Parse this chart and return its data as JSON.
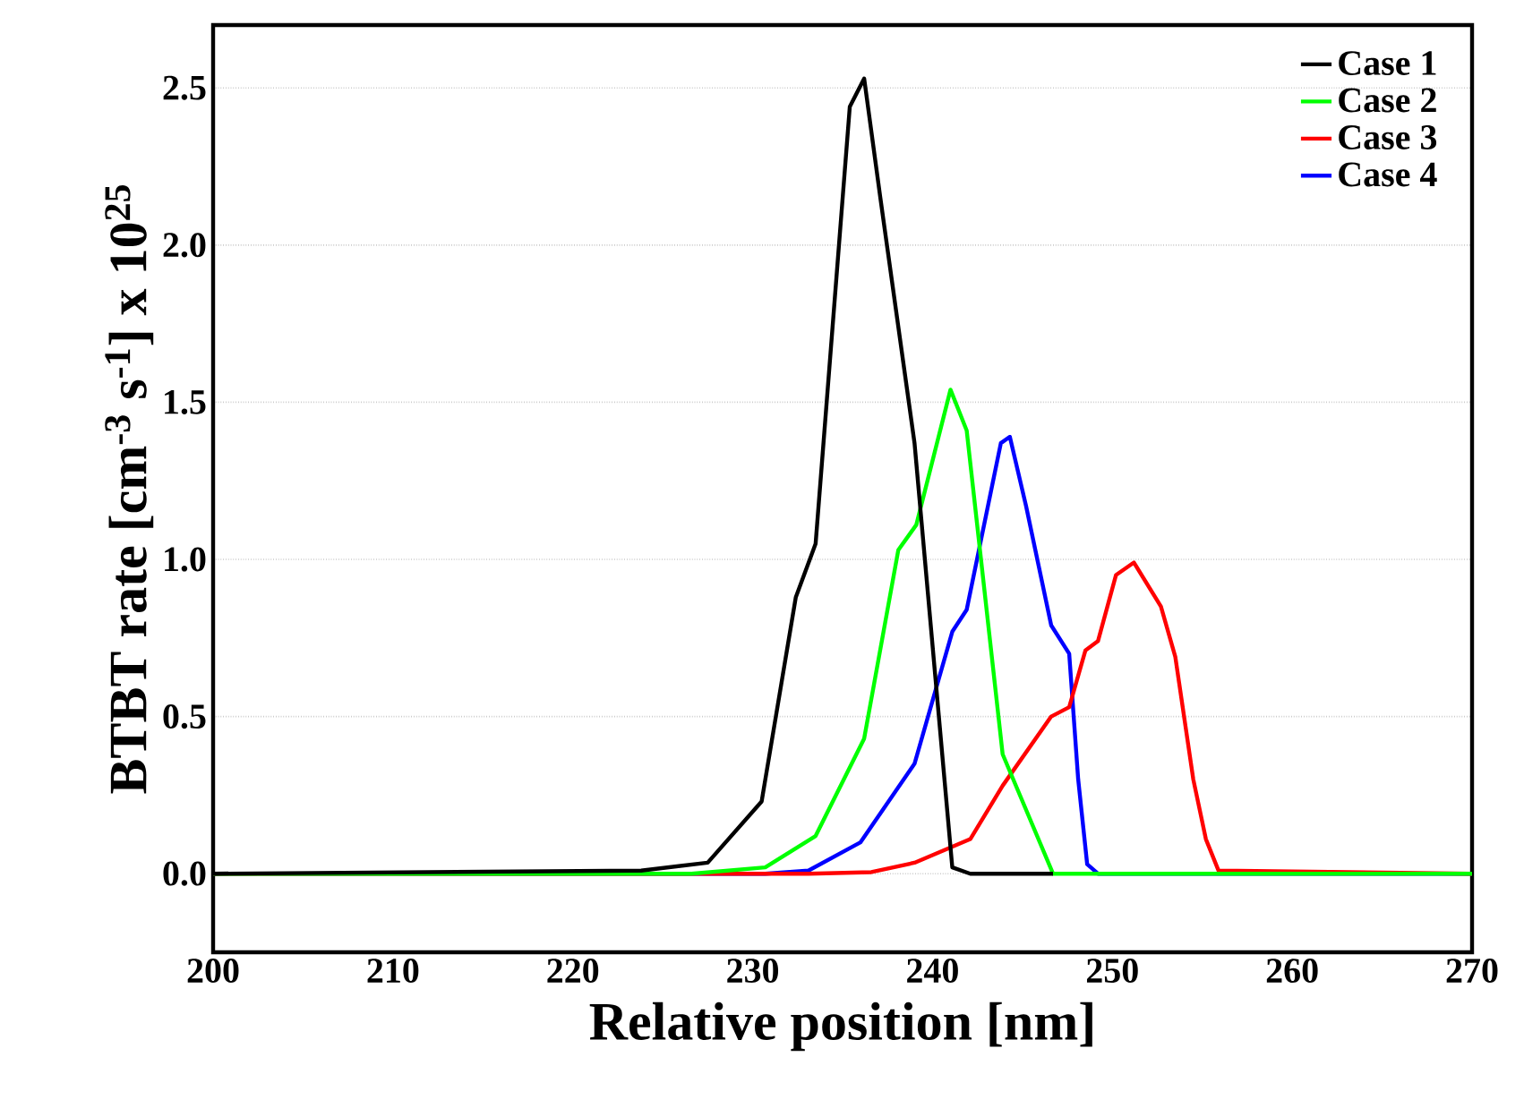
{
  "chart_data": {
    "type": "line",
    "xlabel": "Relative position [nm]",
    "ylabel": "BTBT rate [cm$^{-3}$ s$^{-1}$] x 10$^{25}$",
    "xlim": [
      200,
      270
    ],
    "ylim": [
      -0.25,
      2.7
    ],
    "xticks": [
      200,
      210,
      220,
      230,
      240,
      250,
      260,
      270
    ],
    "yticks": [
      {
        "value": 0,
        "label": "0.0"
      },
      0.5,
      {
        "value": 1,
        "label": "1.0"
      },
      1.5,
      {
        "value": 2,
        "label": "2.0"
      },
      2.5
    ],
    "grid": "y",
    "legend": "top right",
    "marker": "none",
    "line_style": "solid",
    "series": [
      {
        "name": "Case 1",
        "color": "#000000",
        "x": [
          200,
          223.8,
          227.5,
          230.5,
          232.4,
          233.5,
          235.4,
          236.2,
          237.1,
          239.0,
          241.1,
          242.1,
          246.7
        ],
        "values": [
          0,
          0.01,
          0.035,
          0.23,
          0.88,
          1.05,
          2.44,
          2.53,
          2.15,
          1.37,
          0.02,
          0,
          0
        ]
      },
      {
        "name": "Case 2",
        "color": "#00ff00",
        "x": [
          200,
          226.6,
          230.7,
          233.5,
          236.2,
          238.1,
          239.1,
          241.0,
          241.9,
          243.9,
          246.7,
          270
        ],
        "values": [
          0,
          0,
          0.02,
          0.12,
          0.43,
          1.03,
          1.11,
          1.54,
          1.41,
          0.38,
          0,
          0
        ]
      },
      {
        "name": "Case 3",
        "color": "#ff0000",
        "x": [
          200,
          226.6,
          233.1,
          236.6,
          239.0,
          242.1,
          243.9,
          246.6,
          247.6,
          248.5,
          249.2,
          250.2,
          251.2,
          252.7,
          253.5,
          254.5,
          255.2,
          255.9,
          270
        ],
        "values": [
          0,
          0,
          0,
          0.005,
          0.035,
          0.11,
          0.28,
          0.5,
          0.53,
          0.71,
          0.74,
          0.95,
          0.99,
          0.85,
          0.69,
          0.3,
          0.11,
          0.01,
          0
        ]
      },
      {
        "name": "Case 4",
        "color": "#0000ff",
        "x": [
          200,
          230.7,
          233.1,
          236.0,
          239.0,
          241.1,
          241.9,
          243.8,
          244.3,
          245.2,
          246.6,
          247.6,
          248.1,
          248.6,
          249.2,
          270
        ],
        "values": [
          0,
          0,
          0.01,
          0.1,
          0.35,
          0.77,
          0.84,
          1.37,
          1.39,
          1.17,
          0.79,
          0.7,
          0.3,
          0.03,
          0,
          0
        ]
      }
    ]
  }
}
